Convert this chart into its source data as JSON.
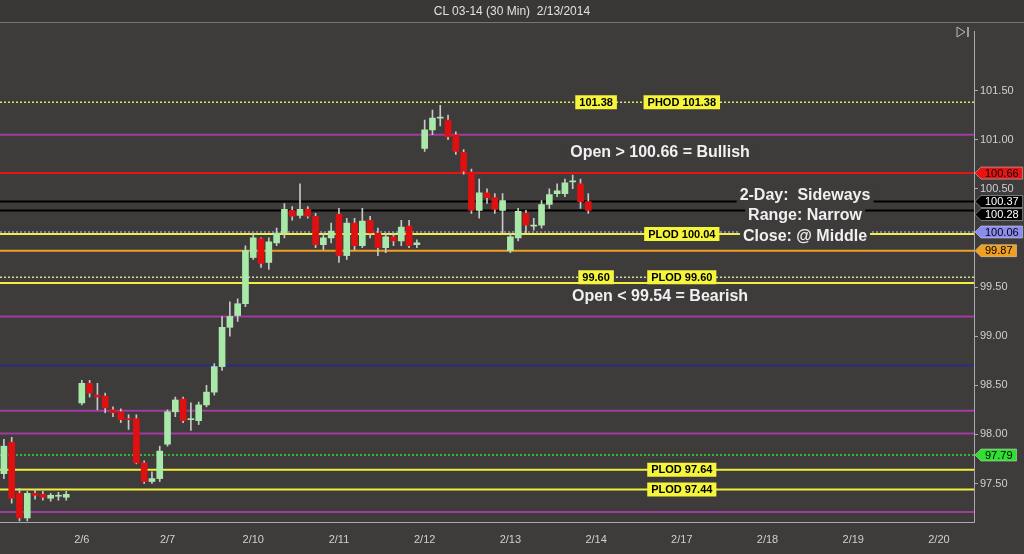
{
  "chart_data": {
    "type": "candlestick",
    "title": "CL 03-14 (30 Min)  2/13/2014",
    "categories": [
      null,
      null,
      null,
      null,
      null,
      null,
      null,
      null,
      null,
      null,
      "2/6",
      null,
      null,
      null,
      null,
      null,
      null,
      null,
      null,
      null,
      null,
      "2/7",
      null,
      null,
      null,
      null,
      null,
      null,
      null,
      null,
      null,
      null,
      "2/10",
      null,
      null,
      null,
      null,
      null,
      null,
      null,
      null,
      null,
      null,
      "2/11",
      null,
      null,
      null,
      null,
      null,
      null,
      null,
      null,
      null,
      null,
      "2/12",
      null,
      null,
      null,
      null,
      null,
      null,
      null,
      null,
      null,
      null,
      "2/13",
      null,
      null,
      null,
      null,
      null,
      null,
      null,
      null,
      null,
      null,
      "2/14",
      null,
      null,
      null,
      null,
      null,
      null,
      null,
      null,
      null,
      null,
      "2/17",
      null,
      null,
      null,
      null,
      null,
      null,
      null,
      null,
      null,
      null,
      "2/18",
      null,
      null,
      null,
      null,
      null,
      null,
      null,
      null,
      null,
      null,
      "2/19",
      null,
      null,
      null,
      null,
      null,
      null,
      null,
      null,
      null,
      null,
      "2/20",
      null,
      null,
      null,
      null
    ],
    "ohlc": [
      [
        97.6,
        97.95,
        97.55,
        97.88
      ],
      [
        97.92,
        97.97,
        97.3,
        97.35
      ],
      [
        97.4,
        97.45,
        97.12,
        97.15
      ],
      [
        97.15,
        97.42,
        97.12,
        97.4
      ],
      [
        97.4,
        97.44,
        97.34,
        97.38
      ],
      [
        97.39,
        97.42,
        97.33,
        97.36
      ],
      [
        97.35,
        97.4,
        97.32,
        97.38
      ],
      [
        97.37,
        97.41,
        97.33,
        97.38
      ],
      [
        97.36,
        97.42,
        97.33,
        97.39
      ],
      null,
      [
        98.32,
        98.55,
        98.3,
        98.52
      ],
      [
        98.52,
        98.55,
        98.38,
        98.42
      ],
      [
        98.4,
        98.52,
        98.25,
        98.38
      ],
      [
        98.39,
        98.42,
        98.22,
        98.27
      ],
      [
        98.25,
        98.28,
        98.18,
        98.22
      ],
      [
        98.23,
        98.26,
        98.12,
        98.15
      ],
      [
        98.16,
        98.2,
        98.05,
        98.15
      ],
      [
        98.16,
        98.2,
        97.7,
        97.71
      ],
      [
        97.71,
        97.73,
        97.5,
        97.52
      ],
      [
        97.52,
        97.62,
        97.5,
        97.55
      ],
      [
        97.55,
        97.88,
        97.52,
        97.83
      ],
      [
        97.9,
        98.25,
        97.88,
        98.23
      ],
      [
        98.23,
        98.38,
        98.18,
        98.35
      ],
      [
        98.36,
        98.38,
        98.12,
        98.14
      ],
      [
        98.15,
        98.32,
        98.04,
        98.16
      ],
      [
        98.14,
        98.33,
        98.1,
        98.3
      ],
      [
        98.3,
        98.5,
        98.28,
        98.43
      ],
      [
        98.43,
        98.72,
        98.4,
        98.69
      ],
      [
        98.69,
        99.2,
        98.65,
        99.09
      ],
      [
        99.09,
        99.35,
        99.0,
        99.2
      ],
      [
        99.21,
        99.38,
        99.15,
        99.33
      ],
      [
        99.33,
        99.92,
        99.3,
        99.87
      ],
      [
        99.8,
        100.05,
        99.78,
        100.0
      ],
      [
        99.99,
        100.0,
        99.7,
        99.74
      ],
      [
        99.75,
        100.0,
        99.68,
        99.96
      ],
      [
        99.95,
        100.1,
        99.92,
        100.05
      ],
      [
        100.05,
        100.35,
        100.0,
        100.29
      ],
      [
        100.28,
        100.32,
        100.18,
        100.22
      ],
      [
        100.23,
        100.55,
        100.2,
        100.29
      ],
      [
        100.29,
        100.32,
        100.2,
        100.22
      ],
      [
        100.22,
        100.25,
        99.9,
        99.93
      ],
      [
        99.93,
        100.05,
        99.88,
        100.0
      ],
      [
        100.0,
        100.15,
        99.95,
        100.07
      ],
      [
        100.24,
        100.3,
        99.75,
        99.82
      ],
      [
        99.82,
        100.2,
        99.78,
        100.15
      ],
      [
        100.15,
        100.2,
        99.88,
        99.92
      ],
      [
        99.92,
        100.3,
        99.9,
        100.17
      ],
      [
        100.18,
        100.22,
        100.0,
        100.05
      ],
      [
        100.05,
        100.1,
        99.82,
        99.9
      ],
      [
        99.9,
        100.05,
        99.85,
        100.01
      ],
      [
        100.01,
        100.05,
        99.92,
        99.97
      ],
      [
        99.97,
        100.18,
        99.92,
        100.11
      ],
      [
        100.12,
        100.18,
        99.9,
        99.92
      ],
      [
        99.93,
        99.98,
        99.9,
        99.95
      ],
      [
        100.91,
        101.2,
        100.88,
        101.1
      ],
      [
        101.1,
        101.3,
        101.05,
        101.22
      ],
      [
        101.22,
        101.35,
        101.14,
        101.23
      ],
      [
        101.2,
        101.25,
        101.0,
        101.03
      ],
      [
        101.05,
        101.08,
        100.85,
        100.88
      ],
      [
        100.87,
        100.9,
        100.65,
        100.68
      ],
      [
        100.67,
        100.7,
        100.25,
        100.28
      ],
      [
        100.28,
        100.6,
        100.2,
        100.46
      ],
      [
        100.46,
        100.5,
        100.35,
        100.41
      ],
      [
        100.41,
        100.45,
        100.25,
        100.29
      ],
      [
        100.28,
        100.45,
        100.05,
        100.38
      ],
      [
        99.87,
        100.05,
        99.85,
        100.01
      ],
      [
        100.0,
        100.3,
        99.97,
        100.27
      ],
      [
        100.25,
        100.28,
        100.05,
        100.13
      ],
      [
        100.12,
        100.2,
        100.08,
        100.13
      ],
      [
        100.13,
        100.38,
        100.1,
        100.34
      ],
      [
        100.34,
        100.5,
        100.3,
        100.44
      ],
      [
        100.45,
        100.55,
        100.42,
        100.48
      ],
      [
        100.45,
        100.6,
        100.42,
        100.56
      ],
      [
        100.57,
        100.64,
        100.5,
        100.58
      ],
      [
        100.55,
        100.6,
        100.3,
        100.37
      ],
      [
        100.37,
        100.45,
        100.25,
        100.28
      ],
      null,
      null,
      null,
      null,
      null,
      null,
      null,
      null,
      null,
      null,
      null,
      null,
      null,
      null,
      null,
      null,
      null,
      null,
      null,
      null,
      null,
      null,
      null,
      null,
      null,
      null,
      null,
      null,
      null,
      null,
      null,
      null,
      null,
      null,
      null,
      null,
      null,
      null,
      null,
      null,
      null,
      null,
      null,
      null,
      null,
      null,
      null,
      null,
      null
    ],
    "colors": [
      "#a8e8a8",
      "#e01010",
      "#e01010",
      "#a8e8a8",
      "#e01010",
      "#e01010",
      "#a8e8a8",
      "#a8e8a8",
      "#a8e8a8",
      null,
      "#a8e8a8",
      "#e01010",
      "#e01010",
      "#e01010",
      "#e01010",
      "#e01010",
      "#e01010",
      "#e01010",
      "#e01010",
      "#a8e8a8",
      "#a8e8a8",
      "#a8e8a8",
      "#a8e8a8",
      "#e01010",
      "#a8e8a8",
      "#a8e8a8",
      "#a8e8a8",
      "#a8e8a8",
      "#a8e8a8",
      "#a8e8a8",
      "#a8e8a8",
      "#a8e8a8",
      "#a8e8a8",
      "#e01010",
      "#a8e8a8",
      "#a8e8a8",
      "#a8e8a8",
      "#e01010",
      "#a8e8a8",
      "#e01010",
      "#e01010",
      "#a8e8a8",
      "#a8e8a8",
      "#e01010",
      "#a8e8a8",
      "#e01010",
      "#a8e8a8",
      "#e01010",
      "#e01010",
      "#a8e8a8",
      "#e01010",
      "#a8e8a8",
      "#e01010",
      "#a8e8a8",
      "#a8e8a8",
      "#a8e8a8",
      "#a8e8a8",
      "#e01010",
      "#e01010",
      "#e01010",
      "#e01010",
      "#a8e8a8",
      "#e01010",
      "#e01010",
      "#a8e8a8",
      "#a8e8a8",
      "#a8e8a8",
      "#e01010",
      "#a8e8a8",
      "#a8e8a8",
      "#a8e8a8",
      "#a8e8a8",
      "#a8e8a8",
      "#a8e8a8",
      "#e01010",
      "#e01010",
      null,
      null,
      null,
      null,
      null,
      null,
      null,
      null,
      null,
      null,
      null,
      null,
      null,
      null,
      null,
      null,
      null,
      null,
      null,
      null,
      null,
      null,
      null,
      null,
      null,
      null,
      null,
      null,
      null,
      null,
      null,
      null,
      null,
      null,
      null,
      null,
      null,
      null,
      null,
      null,
      null,
      null,
      null,
      null,
      null,
      null,
      null,
      null,
      null
    ],
    "ylim": [
      97.1,
      102.1
    ],
    "yticks": [
      {
        "value": 97.5,
        "label": "97.50"
      },
      {
        "value": 98,
        "label": "98.00"
      },
      {
        "value": 98.5,
        "label": "98.50"
      },
      {
        "value": 99,
        "label": "99.00"
      },
      {
        "value": 99.5,
        "label": "99.50"
      },
      {
        "value": 100.5,
        "label": "100.50"
      },
      {
        "value": 101,
        "label": "101.00"
      },
      {
        "value": 101.5,
        "label": "101.50"
      }
    ],
    "ref_lines": [
      {
        "axis": "y",
        "value": 101.38,
        "color": "#e6e65c",
        "line_style": "dotted"
      },
      {
        "axis": "y",
        "value": 100.04,
        "color": "#f0f03c"
      },
      {
        "axis": "y",
        "value": 99.6,
        "color": "#d8d8a0",
        "line_style": "dotted"
      },
      {
        "axis": "y",
        "value": 99.54,
        "color": "#f0f03c"
      },
      {
        "axis": "y",
        "value": 97.64,
        "color": "#f0f03c"
      },
      {
        "axis": "y",
        "value": 97.44,
        "color": "#f0f03c"
      },
      {
        "axis": "y",
        "value": 101.05,
        "color": "#a03ca0"
      },
      {
        "axis": "y",
        "value": 99.2,
        "color": "#a03ca0"
      },
      {
        "axis": "y",
        "value": 98.24,
        "color": "#a03ca0"
      },
      {
        "axis": "y",
        "value": 98.01,
        "color": "#a03ca0"
      },
      {
        "axis": "y",
        "value": 97.21,
        "color": "#a03ca0"
      },
      {
        "axis": "y",
        "value": 98.7,
        "color": "#2c2c80"
      },
      {
        "axis": "y",
        "value": 100.66,
        "label": "100.66",
        "color": "#e81414"
      },
      {
        "axis": "y",
        "value": 100.37,
        "label": "100.37",
        "color": "#000000"
      },
      {
        "axis": "y",
        "value": 100.28,
        "label": "100.28",
        "color": "#000000"
      },
      {
        "axis": "y",
        "value": 100.06,
        "label": "100.06",
        "color": "#8c8cf0",
        "line_style": "dotted"
      },
      {
        "axis": "y",
        "value": 99.87,
        "label": "99.87",
        "color": "#f0a020"
      },
      {
        "axis": "y",
        "value": 97.79,
        "label": "97.79",
        "color": "#30e030",
        "line_style": "dotted"
      }
    ],
    "annotations": [
      "Open > 100.66 = Bullish",
      "Open < 99.54 = Bearish",
      "2-Day:  Sideways",
      "Range: Narrow",
      "Close: @ Middle",
      {
        "text": "101.38",
        "x": "2/14",
        "y": 101.38
      },
      {
        "text": "99.60",
        "x": "2/14",
        "y": 99.6
      },
      {
        "text": "PHOD 101.38",
        "x": "2/17",
        "y": 101.38
      },
      {
        "text": "PLOD 100.04",
        "x": "2/17",
        "y": 100.04
      },
      {
        "text": "PLOD 99.60",
        "x": "2/17",
        "y": 99.6
      },
      {
        "text": "PLOD 97.64",
        "x": "2/17",
        "y": 97.64
      },
      {
        "text": "PLOD 97.44",
        "x": "2/17",
        "y": 97.44
      }
    ]
  }
}
